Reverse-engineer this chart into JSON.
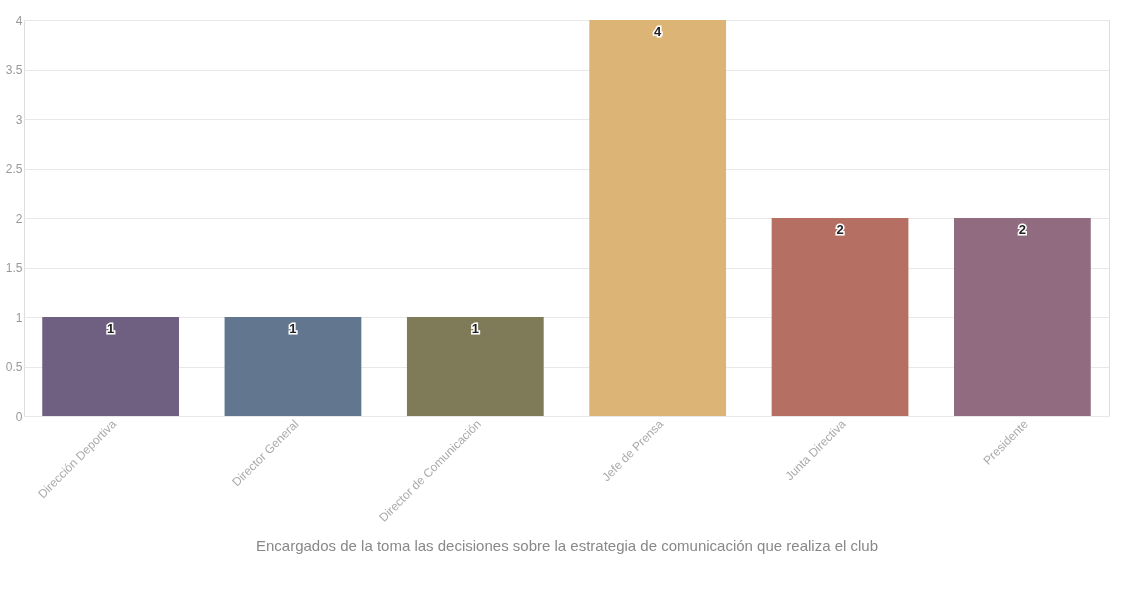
{
  "chart_data": {
    "type": "bar",
    "xlabel": "Encargados de la toma las decisiones sobre la estrategia de comunicación que realiza el club",
    "categories": [
      "Dirección Deportiva",
      "Director General",
      "Director de Comunicación",
      "Jefe de Prensa",
      "Junta Directiva",
      "Presidente"
    ],
    "values": [
      1,
      1,
      1,
      4,
      2,
      2
    ],
    "colors": [
      "#6f5f80",
      "#62778f",
      "#7f7b58",
      "#dcb576",
      "#b57063",
      "#916b80"
    ],
    "ylim": [
      0,
      4
    ],
    "yticks": [
      0,
      0.5,
      1,
      1.5,
      2,
      2.5,
      3,
      3.5,
      4
    ],
    "grid": "y",
    "data_labels": true
  }
}
